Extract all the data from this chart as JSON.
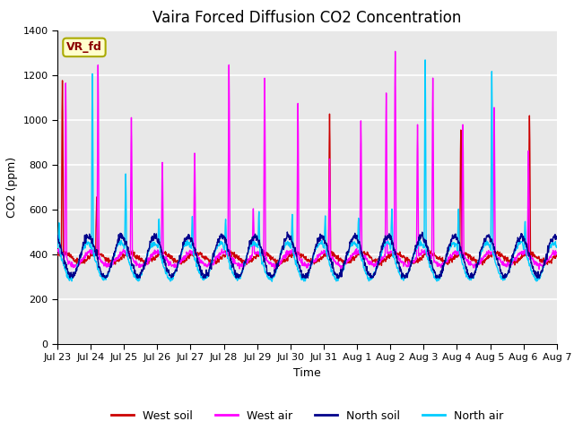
{
  "title": "Vaira Forced Diffusion CO2 Concentration",
  "xlabel": "Time",
  "ylabel": "CO2 (ppm)",
  "ylim": [
    0,
    1400
  ],
  "yticks": [
    0,
    200,
    400,
    600,
    800,
    1000,
    1200,
    1400
  ],
  "legend_labels": [
    "West soil",
    "West air",
    "North soil",
    "North air"
  ],
  "legend_colors": [
    "#cc0000",
    "#ff00ff",
    "#00008b",
    "#00ccff"
  ],
  "annotation_text": "VR_fd",
  "annotation_bg": "#ffffcc",
  "annotation_border": "#aaaa00",
  "plot_bg": "#e8e8e8",
  "grid_color": "#ffffff",
  "title_fontsize": 12,
  "axis_fontsize": 9,
  "tick_fontsize": 8,
  "n_points": 1500,
  "x_start": 0,
  "x_end": 15,
  "xtick_positions": [
    0,
    1,
    2,
    3,
    4,
    5,
    6,
    7,
    8,
    9,
    10,
    11,
    12,
    13,
    14,
    15
  ],
  "xtick_labels": [
    "Jul 23",
    "Jul 24",
    "Jul 25",
    "Jul 26",
    "Jul 27",
    "Jul 28",
    "Jul 29",
    "Jul 30",
    "Jul 31",
    "Aug 1",
    "Aug 2",
    "Aug 3",
    "Aug 4",
    "Aug 5",
    "Aug 6",
    "Aug 7"
  ],
  "wa_spikes_x": [
    0.25,
    1.22,
    2.22,
    3.15,
    4.12,
    5.15,
    5.88,
    6.22,
    7.22,
    8.18,
    9.12,
    9.88,
    10.15,
    10.82,
    11.28,
    12.18,
    13.12,
    14.15
  ],
  "wa_spikes_h": [
    1170,
    1235,
    1005,
    790,
    830,
    1225,
    585,
    1180,
    1065,
    800,
    980,
    1095,
    1290,
    970,
    1190,
    960,
    1035,
    845
  ],
  "na_spikes_x": [
    0.05,
    1.05,
    2.05,
    3.05,
    4.05,
    5.05,
    6.05,
    7.05,
    8.05,
    9.05,
    10.05,
    11.05,
    12.05,
    13.05,
    14.05
  ],
  "na_spikes_h": [
    490,
    1155,
    700,
    515,
    520,
    515,
    535,
    530,
    520,
    510,
    555,
    1220,
    555,
    1165,
    505
  ],
  "ws_spikes_x": [
    0.15,
    1.18,
    8.18,
    12.12,
    14.18
  ],
  "ws_spikes_h": [
    1165,
    635,
    995,
    950,
    1010
  ],
  "linewidth": 1.0
}
